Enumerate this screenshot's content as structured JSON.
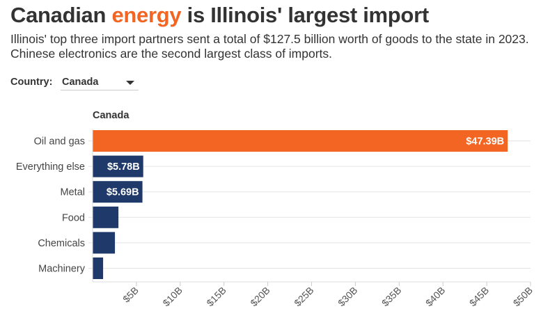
{
  "header": {
    "title_pre": "Canadian ",
    "title_highlight": "energy",
    "title_post": " is Illinois' largest import",
    "subtitle": "Illinois' top three import partners sent a total of $127.5 billion worth of goods to the state in 2023. Chinese electronics are the second largest class of imports."
  },
  "control": {
    "label": "Country:",
    "selected": "Canada"
  },
  "colors": {
    "highlight": "#f26522",
    "bar": "#1f3a6a"
  },
  "chart_data": {
    "type": "bar",
    "orientation": "horizontal",
    "title": "Canada",
    "categories": [
      "Oil and gas",
      "Everything else",
      "Metal",
      "Food",
      "Chemicals",
      "Machinery"
    ],
    "values": [
      47.39,
      5.78,
      5.69,
      2.95,
      2.55,
      1.2
    ],
    "data_labels": [
      "$47.39B",
      "$5.78B",
      "$5.69B",
      "",
      "",
      ""
    ],
    "highlight_index": 0,
    "xlim": [
      0,
      50
    ],
    "xticks": [
      5,
      10,
      15,
      20,
      25,
      30,
      35,
      40,
      45,
      50
    ],
    "xtick_labels": [
      "$5B",
      "$10B",
      "$15B",
      "$20B",
      "$25B",
      "$30B",
      "$35B",
      "$40B",
      "$45B",
      "$50B"
    ],
    "grid": true
  }
}
